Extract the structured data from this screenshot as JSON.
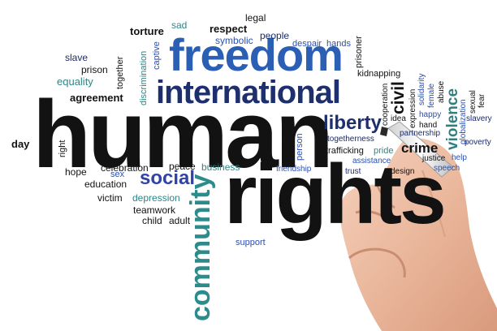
{
  "words": {
    "human": "human",
    "rights": "rights",
    "freedom": "freedom",
    "international": "international",
    "community": "community",
    "social": "social",
    "liberty": "liberty",
    "civil": "civil",
    "crime": "crime",
    "violence": "violence",
    "torture": "torture",
    "sad": "sad",
    "respect": "respect",
    "legal": "legal",
    "people": "people",
    "symbolic": "symbolic",
    "despair": "despair",
    "hands": "hands",
    "prisoner": "prisoner",
    "captive": "captive",
    "discrimination": "discrimination",
    "slave": "slave",
    "prison": "prison",
    "together": "together",
    "equality": "equality",
    "agreement": "agreement",
    "kidnapping": "kidnapping",
    "cooperation": "cooperation",
    "idea": "idea",
    "expression": "expression",
    "solidarity": "solidarity",
    "female": "female",
    "abuse": "abuse",
    "happy": "happy",
    "hand": "hand",
    "sexual": "sexual",
    "fear": "fear",
    "globalization": "globalization",
    "slavery": "slavery",
    "poverty": "poverty",
    "day": "day",
    "right": "right",
    "hope": "hope",
    "celebration": "celebration",
    "peace": "peace",
    "business": "business",
    "sex": "sex",
    "education": "education",
    "victim": "victim",
    "depression": "depression",
    "teamwork": "teamwork",
    "child": "child",
    "adult": "adult",
    "person": "person",
    "friendship": "friendship",
    "togetherness": "togetherness",
    "trafficking": "trafficking",
    "pride": "pride",
    "assistance": "assistance",
    "trust": "trust",
    "design": "design",
    "partnership": "partnership",
    "justice": "justice",
    "help": "help",
    "speech": "speech",
    "support": "support"
  }
}
